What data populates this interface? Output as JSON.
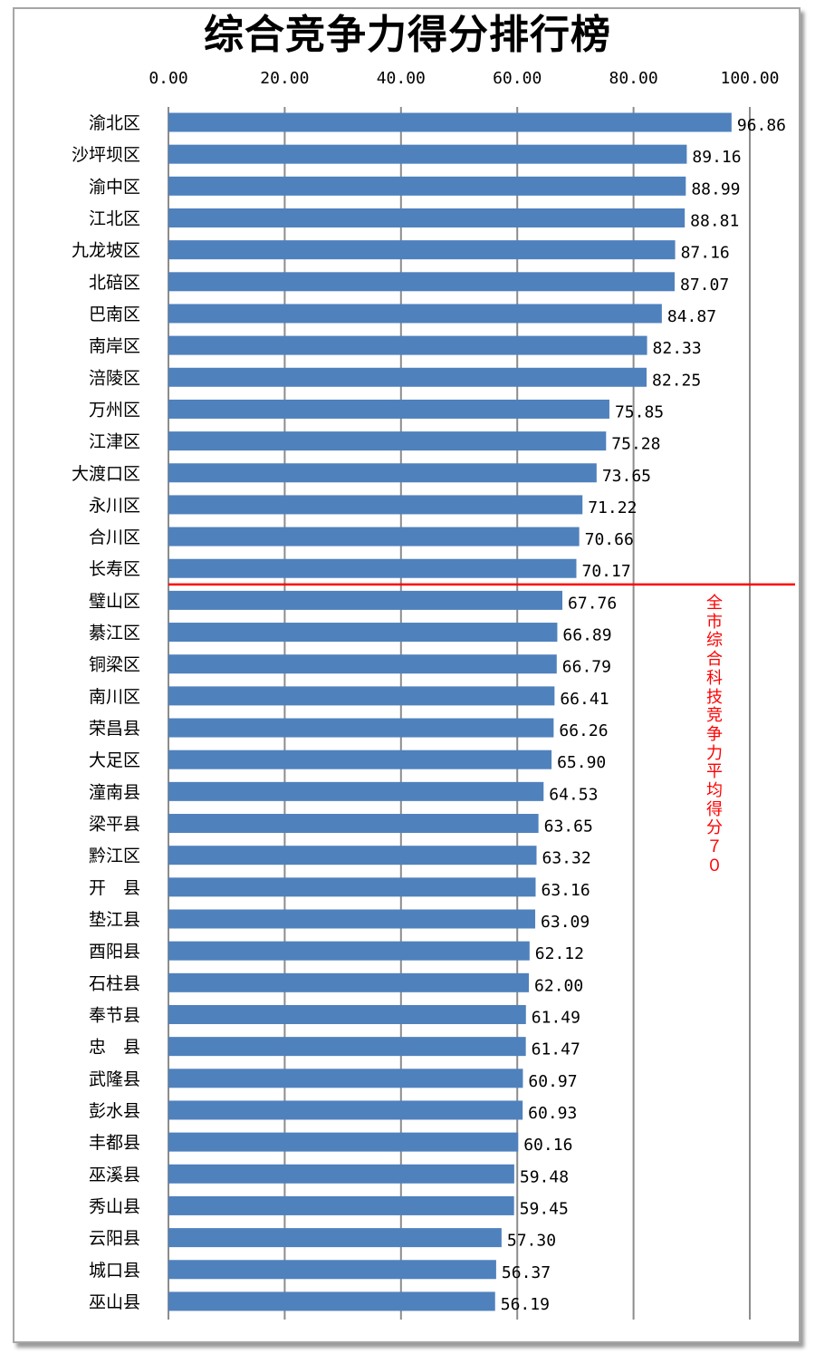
{
  "chart_data": {
    "type": "bar",
    "orientation": "horizontal",
    "title": "综合竞争力得分排行榜",
    "xlim": [
      0,
      100
    ],
    "ticks": [
      "0.00",
      "20.00",
      "40.00",
      "60.00",
      "80.00",
      "100.00"
    ],
    "tick_values": [
      0,
      20,
      40,
      60,
      80,
      100
    ],
    "grid": true,
    "bar_color": "#4f81bd",
    "categories": [
      "渝北区",
      "沙坪坝区",
      "渝中区",
      "江北区",
      "九龙坡区",
      "北碚区",
      "巴南区",
      "南岸区",
      "涪陵区",
      "万州区",
      "江津区",
      "大渡口区",
      "永川区",
      "合川区",
      "长寿区",
      "璧山区",
      "綦江区",
      "铜梁区",
      "南川区",
      "荣昌县",
      "大足区",
      "潼南县",
      "梁平县",
      "黔江区",
      "开　县",
      "垫江县",
      "酉阳县",
      "石柱县",
      "奉节县",
      "忠　县",
      "武隆县",
      "彭水县",
      "丰都县",
      "巫溪县",
      "秀山县",
      "云阳县",
      "城口县",
      "巫山县"
    ],
    "values": [
      96.86,
      89.16,
      88.99,
      88.81,
      87.16,
      87.07,
      84.87,
      82.33,
      82.25,
      75.85,
      75.28,
      73.65,
      71.22,
      70.66,
      70.17,
      67.76,
      66.89,
      66.79,
      66.41,
      66.26,
      65.9,
      64.53,
      63.65,
      63.32,
      63.16,
      63.09,
      62.12,
      62.0,
      61.49,
      61.47,
      60.97,
      60.93,
      60.16,
      59.48,
      59.45,
      57.3,
      56.37,
      56.19
    ],
    "value_labels": [
      "96.86",
      "89.16",
      "88.99",
      "88.81",
      "87.16",
      "87.07",
      "84.87",
      "82.33",
      "82.25",
      "75.85",
      "75.28",
      "73.65",
      "71.22",
      "70.66",
      "70.17",
      "67.76",
      "66.89",
      "66.79",
      "66.41",
      "66.26",
      "65.90",
      "64.53",
      "63.65",
      "63.32",
      "63.16",
      "63.09",
      "62.12",
      "62.00",
      "61.49",
      "61.47",
      "60.97",
      "60.93",
      "60.16",
      "59.48",
      "59.45",
      "57.30",
      "56.37",
      "56.19"
    ],
    "reference_line": {
      "after_index": 14,
      "color": "#ff0000"
    },
    "annotation": "全市综合科技竞争力平均得分７０",
    "annotation_color": "#ff0000"
  }
}
